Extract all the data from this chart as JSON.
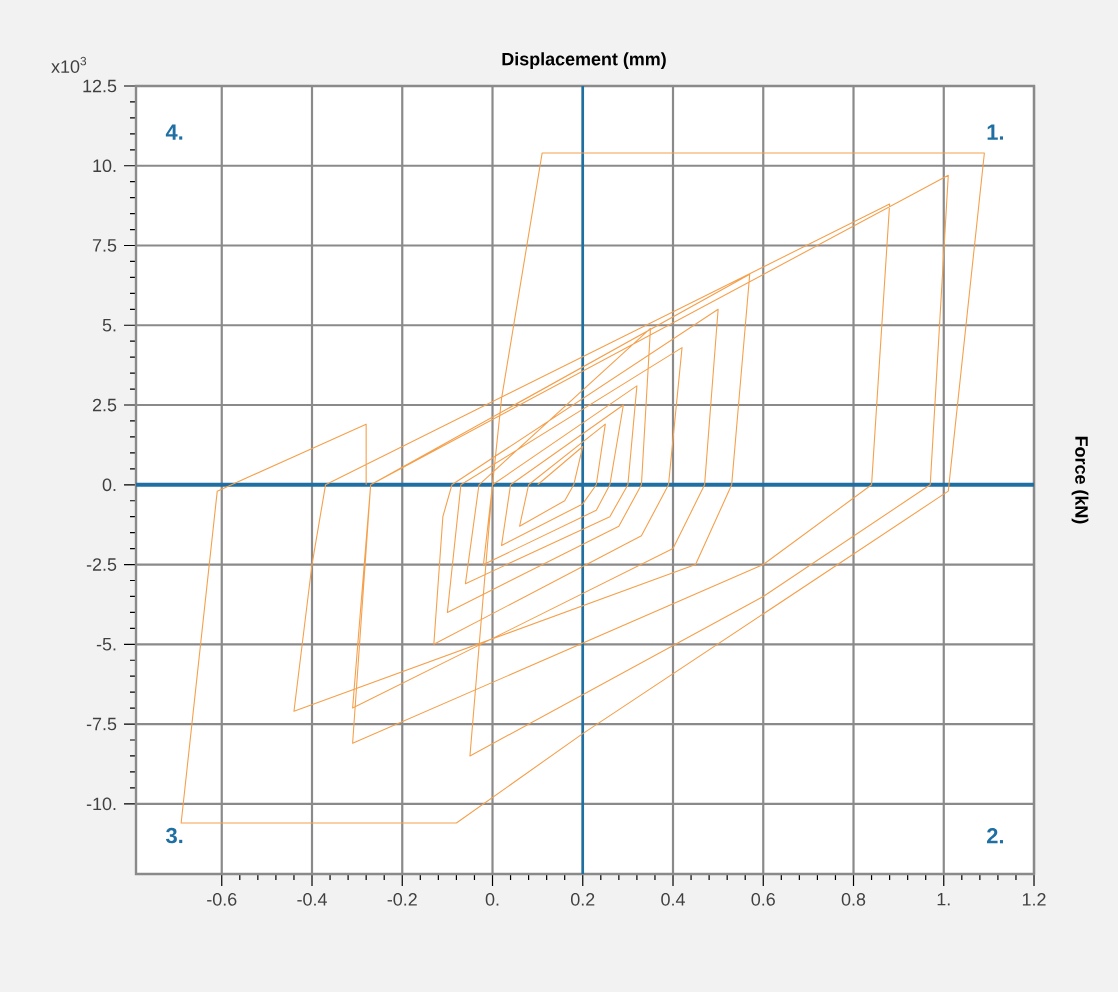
{
  "chart_data": {
    "type": "line",
    "xlabel": "Displacement (mm)",
    "ylabel": "Force (kN)",
    "annotations": [
      "x10$^{3}$",
      "1.",
      "2.",
      "3.",
      "4."
    ],
    "xlim": [
      -0.79,
      1.2
    ],
    "ylim": [
      -12.2,
      12.5
    ],
    "xticks": [
      -0.6,
      -0.4,
      -0.2,
      {
        "value": 0,
        "label": "0."
      },
      0.2,
      0.4,
      0.6,
      0.8,
      {
        "value": 1,
        "label": "1."
      },
      1.2
    ],
    "yticks": [
      12.5,
      {
        "value": 10,
        "label": "10."
      },
      7.5,
      {
        "value": 5,
        "label": "5."
      },
      2.5,
      {
        "value": 0,
        "label": "0."
      },
      -2.5,
      {
        "value": -5,
        "label": "-5."
      },
      -7.5,
      {
        "value": -10,
        "label": "-10."
      }
    ],
    "grid": true,
    "line_style": "solid",
    "ref_lines": [
      {
        "axis": "x",
        "value": 0.2,
        "color": "#1f6fa3"
      },
      {
        "axis": "y",
        "value": 0,
        "color": "#1f6fa3"
      }
    ],
    "series": [
      {
        "color": "#f5a04c",
        "x": [
          0.1,
          0.2,
          0.18,
          0.16,
          0.06,
          0.08,
          0.25,
          0.23,
          0.2,
          0.02,
          0.04,
          0.29,
          0.26,
          0.23,
          -0.02,
          0.0,
          0.32,
          0.3,
          0.26,
          -0.06,
          -0.03,
          0.35,
          0.33,
          0.28,
          -0.1,
          -0.07,
          0.42,
          0.39,
          0.33,
          -0.13,
          -0.11,
          -0.09,
          0.5,
          0.47,
          0.4,
          -0.31,
          -0.27,
          0.57,
          0.53,
          0.45,
          -0.44,
          -0.4,
          -0.37,
          0.88,
          0.84,
          0.6,
          -0.31,
          -0.27,
          1.01,
          0.97,
          0.6,
          -0.05,
          0.0,
          0.02,
          0.11,
          1.09,
          1.01,
          0.2,
          -0.08,
          -0.69,
          -0.61,
          -0.28,
          -0.28
        ],
        "values": [
          0.0,
          1.2,
          0.0,
          -0.5,
          -1.3,
          0.0,
          1.9,
          0.0,
          -0.6,
          -1.9,
          0.0,
          2.5,
          0.0,
          -0.8,
          -2.5,
          0.0,
          3.1,
          0.0,
          -1.0,
          -3.1,
          0.0,
          4.9,
          0.0,
          -1.3,
          -4.0,
          0.0,
          4.3,
          0.0,
          -1.6,
          -5.0,
          -1.0,
          0.0,
          5.5,
          0.0,
          -2.0,
          -7.0,
          0.0,
          6.6,
          0.0,
          -2.5,
          -7.1,
          -2.5,
          0.0,
          8.8,
          0.0,
          -2.5,
          -8.1,
          0.0,
          9.7,
          0.0,
          -3.5,
          -8.5,
          0.0,
          2.7,
          10.4,
          10.4,
          -0.2,
          -7.8,
          -10.6,
          -10.6,
          -0.2,
          1.9,
          0.0
        ]
      }
    ]
  }
}
